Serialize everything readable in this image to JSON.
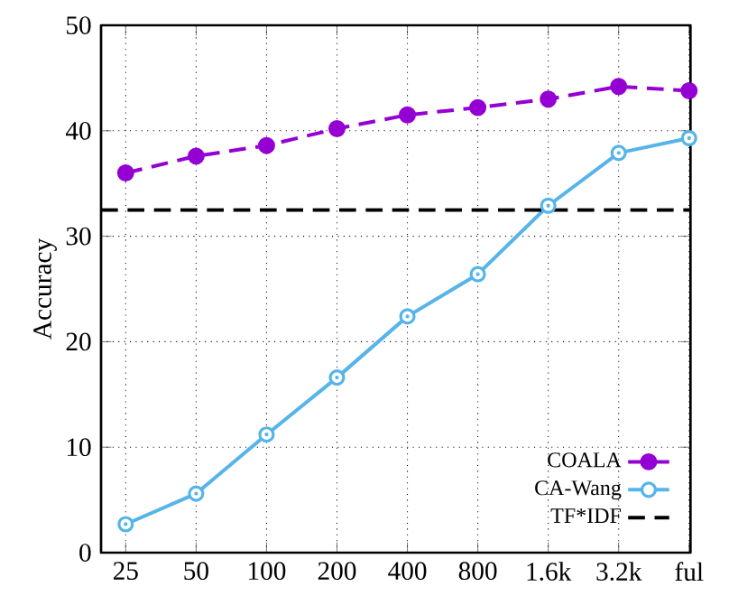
{
  "chart_data": {
    "type": "line",
    "ylabel": "Accuracy",
    "categories": [
      "25",
      "50",
      "100",
      "200",
      "400",
      "800",
      "1.6k",
      "3.2k",
      "ful"
    ],
    "series": [
      {
        "name": "COALA",
        "color": "#9400d3",
        "marker": "circle",
        "line_style": "dashed",
        "values": [
          36.0,
          37.6,
          38.6,
          40.2,
          41.5,
          42.2,
          43.0,
          44.2,
          43.8
        ]
      },
      {
        "name": "CA-Wang",
        "color": "#56b4e9",
        "marker": "circle",
        "line_style": "solid",
        "values": [
          2.7,
          5.6,
          11.2,
          16.6,
          22.4,
          26.4,
          32.9,
          37.9,
          39.3
        ]
      }
    ],
    "ref_lines": [
      {
        "axis": "y",
        "value": 32.5,
        "label": "TF*IDF",
        "color": "#000000",
        "line_style": "dashed"
      }
    ],
    "ylim": [
      0,
      50
    ],
    "yticks": [
      0,
      10,
      20,
      30,
      40,
      50
    ],
    "grid": true,
    "legend": "bottom right"
  }
}
